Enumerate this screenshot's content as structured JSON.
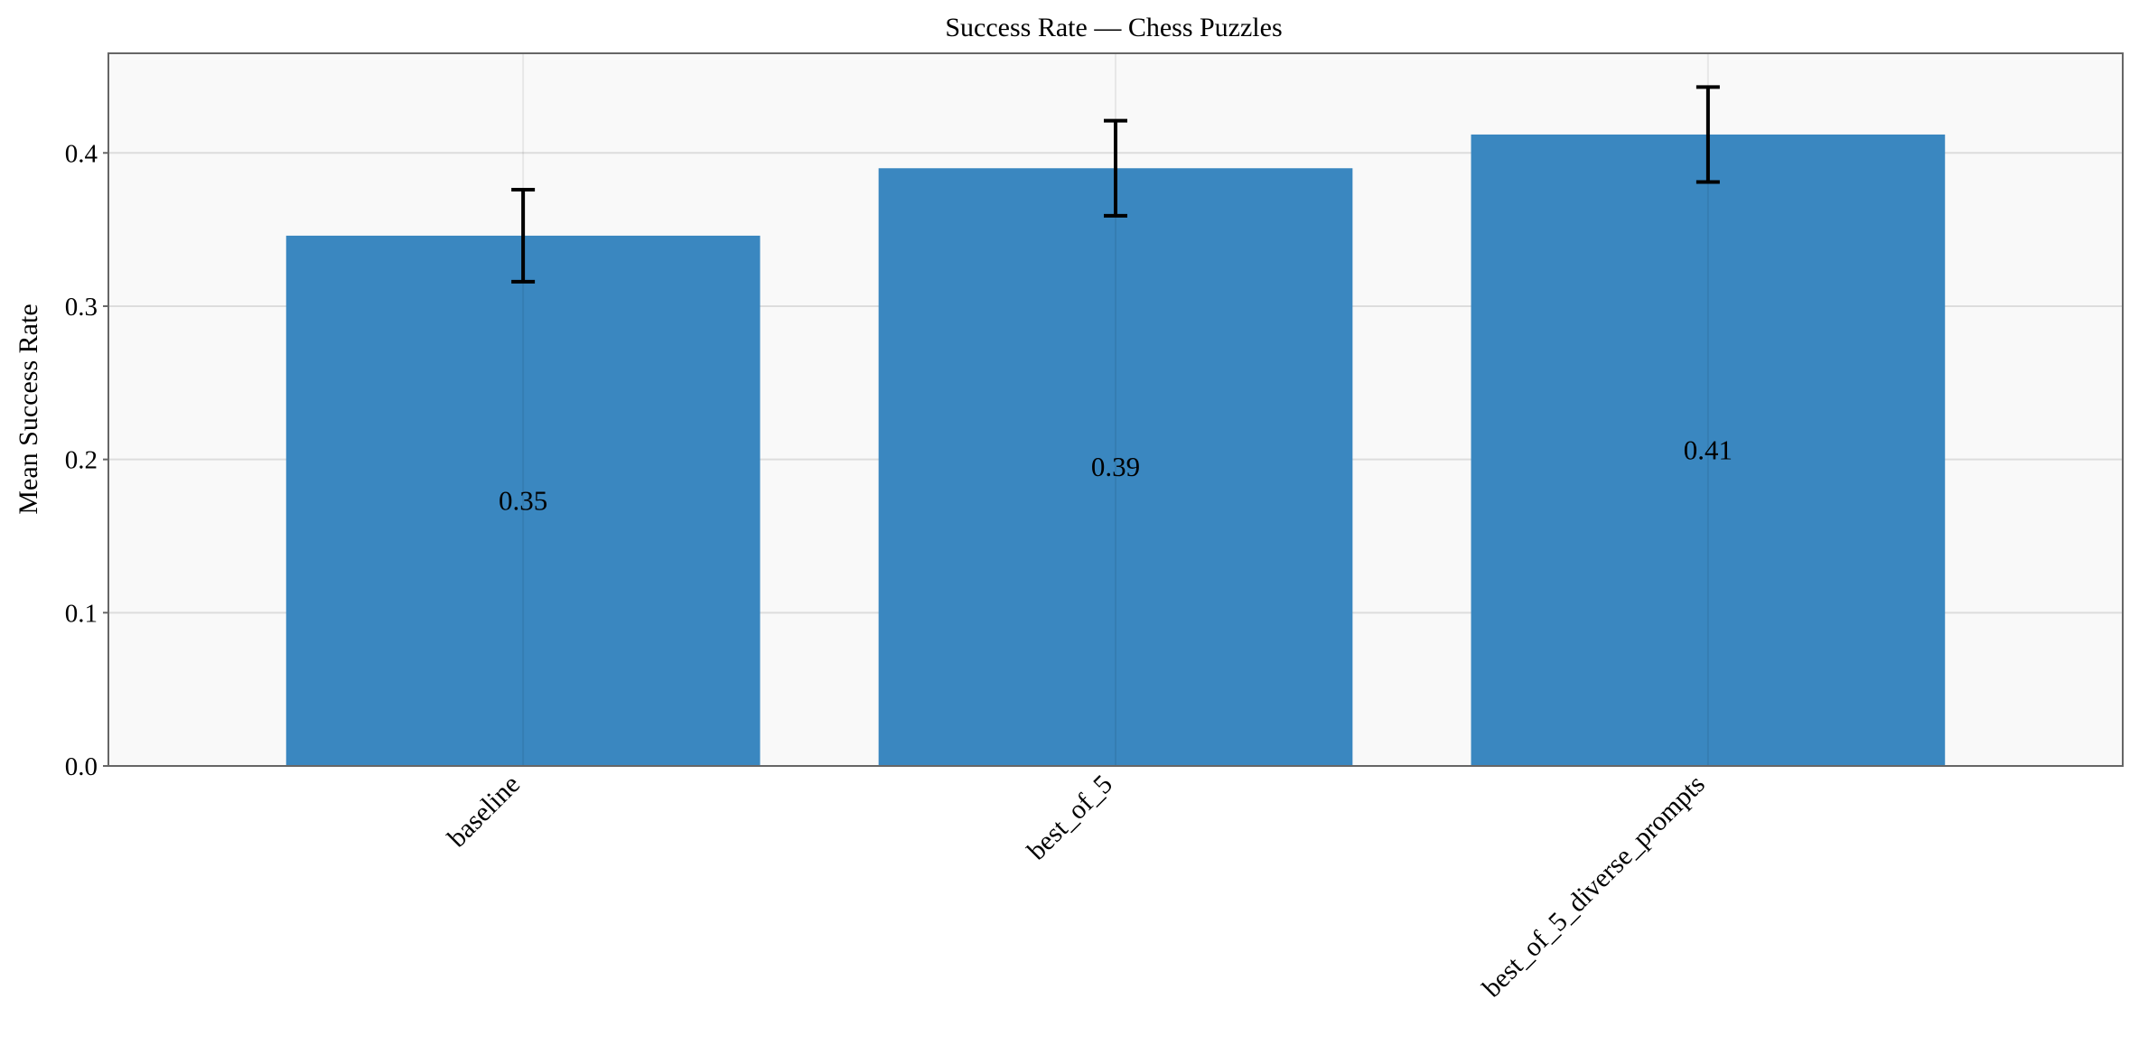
{
  "chart_data": {
    "type": "bar",
    "title": "Success Rate — Chess Puzzles",
    "xlabel": "",
    "ylabel": "Mean Success Rate",
    "categories": [
      "baseline",
      "best_of_5",
      "best_of_5_diverse_prompts"
    ],
    "values": [
      0.346,
      0.39,
      0.412
    ],
    "value_labels": [
      "0.35",
      "0.39",
      "0.41"
    ],
    "errors": [
      0.03,
      0.031,
      0.031
    ],
    "ylim": [
      0,
      0.465
    ],
    "yticks": [
      0.0,
      0.1,
      0.2,
      0.3,
      0.4
    ],
    "ytick_labels": [
      "0.0",
      "0.1",
      "0.2",
      "0.3",
      "0.4"
    ],
    "grid": true,
    "legend": "none",
    "colors": {
      "bar": "#3a87c0",
      "plot_background": "#f9f9f9",
      "grid": "#dddddd",
      "axis": "#666666",
      "error_bar": "#000000"
    }
  }
}
